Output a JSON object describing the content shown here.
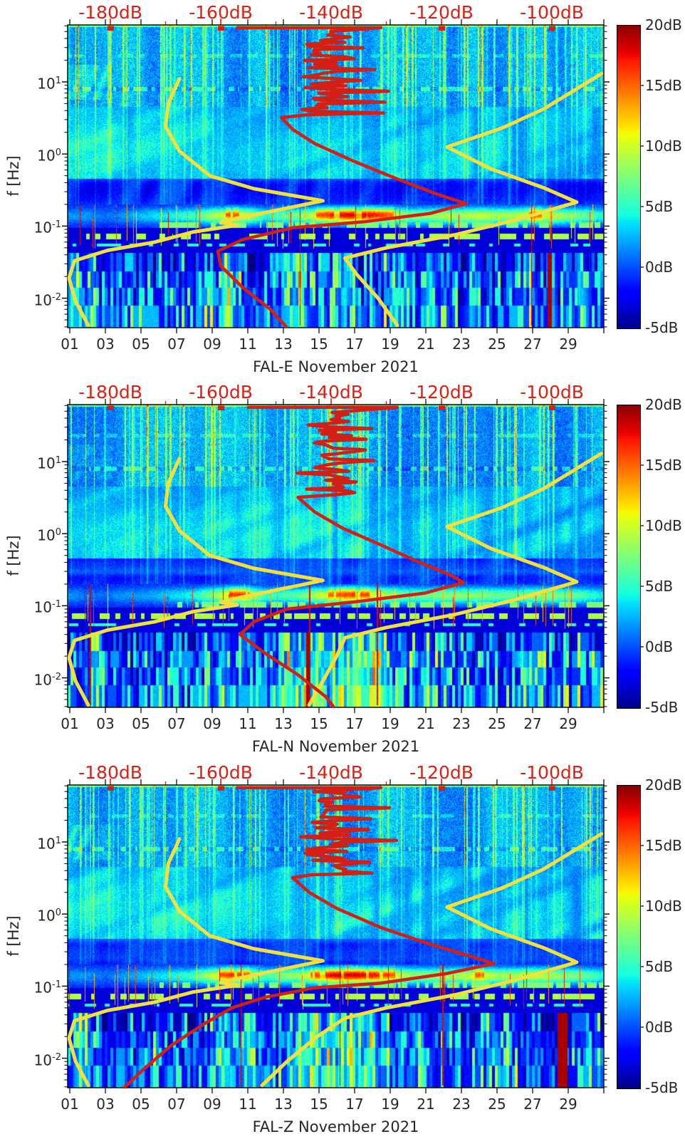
{
  "figure": {
    "background": "#ffffff"
  },
  "axes": {
    "ylabel": "f [Hz]",
    "y_tick_exponents": [
      "1",
      "0",
      "-1",
      "-2"
    ],
    "x_tick_labels": [
      "01",
      "03",
      "05",
      "07",
      "09",
      "11",
      "13",
      "15",
      "17",
      "19",
      "21",
      "23",
      "25",
      "27",
      "29"
    ],
    "x_tick_days": [
      1,
      3,
      5,
      7,
      9,
      11,
      13,
      15,
      17,
      19,
      21,
      23,
      25,
      27,
      29
    ],
    "colors": {
      "text": "#262626",
      "axis": "#111111",
      "top_axis_red": "#d92114",
      "noise_model_yellow": "#f2e13d",
      "median_red": "#d22016"
    }
  },
  "top_axis": {
    "labels": [
      "-180dB",
      "-160dB",
      "-140dB",
      "-120dB",
      "-100dB"
    ],
    "label_db": [
      -180,
      -160,
      -140,
      -120,
      -100
    ],
    "minor_tick_db": [
      -170,
      -150,
      -130,
      -110
    ]
  },
  "colorbar": {
    "tick_labels": [
      "20dB",
      "15dB",
      "10dB",
      "5dB",
      "0dB",
      "-5dB"
    ],
    "tick_values_db": [
      20,
      15,
      10,
      5,
      0,
      -5
    ],
    "min_db": -5,
    "max_db": 20,
    "colormap": "jet"
  },
  "noise_models": {
    "nlnm_points_db_hz": [
      [
        -167.5,
        11
      ],
      [
        -169.5,
        5
      ],
      [
        -170,
        2.4
      ],
      [
        -167.5,
        1.1
      ],
      [
        -162,
        0.5
      ],
      [
        -154,
        0.33
      ],
      [
        -141.5,
        0.225
      ],
      [
        -150,
        0.165
      ],
      [
        -157,
        0.128
      ],
      [
        -160,
        0.112
      ],
      [
        -157,
        0.103
      ],
      [
        -165,
        0.083
      ],
      [
        -172,
        0.06
      ],
      [
        -180.5,
        0.046
      ],
      [
        -186.5,
        0.033
      ],
      [
        -187.5,
        0.019
      ],
      [
        -186.3,
        0.009
      ],
      [
        -184,
        0.0042
      ]
    ],
    "nhnm_points_db_hz_upper": [
      [
        -91,
        13
      ],
      [
        -95.5,
        8
      ],
      [
        -101.5,
        4.2
      ],
      [
        -109,
        2.3
      ],
      [
        -119,
        1.25
      ],
      [
        -111,
        0.62
      ],
      [
        -101.5,
        0.34
      ],
      [
        -95.5,
        0.215
      ],
      [
        -106.5,
        0.122
      ],
      [
        -117.5,
        0.076
      ],
      [
        -130,
        0.05
      ],
      [
        -137.5,
        0.036
      ]
    ]
  },
  "chart_data": [
    {
      "type": "heatmap",
      "subtype": "seismic-power-spectrogram",
      "title": "FAL-E November 2021",
      "component": "E",
      "x_range_days": [
        0.88,
        31
      ],
      "y_axis": {
        "label": "f [Hz]",
        "scale": "log",
        "range_hz": [
          0.0039,
          60
        ]
      },
      "top_axis_range_db": [
        -187.7,
        -90.6
      ],
      "color_range_db": [
        -5,
        20
      ],
      "median_psd_db_hz": [
        [
          -149,
          3.2
        ],
        [
          -147,
          2.2
        ],
        [
          -143,
          1.4
        ],
        [
          -136,
          0.8
        ],
        [
          -128,
          0.45
        ],
        [
          -121,
          0.28
        ],
        [
          -115.5,
          0.205
        ],
        [
          -122,
          0.15
        ],
        [
          -134,
          0.115
        ],
        [
          -147,
          0.095
        ],
        [
          -156,
          0.065
        ],
        [
          -160.5,
          0.045
        ],
        [
          -160,
          0.028
        ],
        [
          -156,
          0.014
        ],
        [
          -151,
          0.007
        ],
        [
          -148,
          0.0039
        ]
      ],
      "nhnm_tail_db_hz": [
        [
          -135.5,
          0.022
        ],
        [
          -131.5,
          0.01
        ],
        [
          -128,
          0.0042
        ]
      ],
      "render": {
        "seed": 11,
        "microseism_intensity_by_day": [
          3,
          3,
          2,
          3,
          4,
          5,
          6,
          7,
          10,
          12,
          11,
          6,
          8,
          9,
          12,
          14,
          15,
          14,
          12,
          9,
          9,
          10,
          10,
          11,
          10,
          10,
          12,
          11,
          9,
          8,
          6
        ],
        "yellow_bottom_columns": [
          [
            2.2,
            0.3,
            6
          ],
          [
            9.9,
            0.5,
            7
          ],
          [
            13.6,
            0.8,
            6
          ],
          [
            16.4,
            0.4,
            6
          ],
          [
            19.3,
            0.3,
            5
          ],
          [
            21.2,
            0.4,
            5
          ],
          [
            23.6,
            0.3,
            5
          ],
          [
            29.8,
            0.3,
            4
          ]
        ],
        "dark_red_columns": [
          [
            27.95,
            0.12
          ]
        ],
        "tall_red_spike_days": [
          13.9,
          26.9
        ],
        "left_patch_boost": 2.5,
        "red_jitter": {
          "base_db": -141,
          "amp_db": 4,
          "spike_db": 12,
          "f_min": 3.5,
          "f_max": 50
        },
        "top_red_segment_db": [
          -157,
          -131
        ],
        "top_red_marker_db": [
          -180,
          -160,
          -120,
          -100
        ]
      }
    },
    {
      "type": "heatmap",
      "subtype": "seismic-power-spectrogram",
      "title": "FAL-N November 2021",
      "component": "N",
      "x_range_days": [
        0.88,
        31
      ],
      "y_axis": {
        "label": "f [Hz]",
        "scale": "log",
        "range_hz": [
          0.0039,
          60
        ]
      },
      "top_axis_range_db": [
        -187.7,
        -90.6
      ],
      "color_range_db": [
        -5,
        20
      ],
      "median_psd_db_hz": [
        [
          -146,
          3.2
        ],
        [
          -143,
          2.0
        ],
        [
          -138,
          1.2
        ],
        [
          -131,
          0.7
        ],
        [
          -124,
          0.4
        ],
        [
          -118.5,
          0.27
        ],
        [
          -116,
          0.21
        ],
        [
          -123,
          0.15
        ],
        [
          -135,
          0.115
        ],
        [
          -148,
          0.09
        ],
        [
          -154,
          0.06
        ],
        [
          -156.5,
          0.04
        ],
        [
          -152,
          0.022
        ],
        [
          -146,
          0.011
        ],
        [
          -141,
          0.0055
        ],
        [
          -139.5,
          0.0039
        ]
      ],
      "nhnm_tail_db_hz": [
        [
          -139,
          0.02
        ],
        [
          -141.5,
          0.009
        ],
        [
          -144,
          0.0042
        ]
      ],
      "render": {
        "seed": 47,
        "microseism_intensity_by_day": [
          3,
          2,
          2,
          3,
          3,
          4,
          5,
          6,
          9,
          13,
          12,
          7,
          7,
          8,
          11,
          12,
          13,
          12,
          10,
          8,
          8,
          9,
          9,
          9,
          8,
          8,
          9,
          9,
          8,
          7,
          5
        ],
        "yellow_bottom_columns": [
          [
            2.4,
            0.3,
            5
          ],
          [
            9.6,
            0.4,
            6
          ],
          [
            13.2,
            0.7,
            7
          ],
          [
            14.8,
            0.9,
            8
          ],
          [
            16.8,
            1.0,
            8
          ],
          [
            18.1,
            0.6,
            7
          ],
          [
            21.0,
            0.4,
            5
          ],
          [
            26.5,
            0.3,
            4
          ]
        ],
        "dark_red_columns": [
          [
            14.35,
            0.1
          ]
        ],
        "tall_red_spike_days": [
          2.1,
          14.45,
          18.25
        ],
        "left_patch_boost": 1.5,
        "red_jitter": {
          "base_db": -140,
          "amp_db": 4,
          "spike_db": 12,
          "f_min": 3.5,
          "f_max": 48
        },
        "top_red_segment_db": [
          -155,
          -128
        ],
        "top_red_marker_db": [
          -180,
          -160,
          -120,
          -100
        ]
      }
    },
    {
      "type": "heatmap",
      "subtype": "seismic-power-spectrogram",
      "title": "FAL-Z November 2021",
      "component": "Z",
      "x_range_days": [
        0.88,
        31
      ],
      "y_axis": {
        "label": "f [Hz]",
        "scale": "log",
        "range_hz": [
          0.0039,
          60
        ]
      },
      "top_axis_range_db": [
        -187.7,
        -90.6
      ],
      "color_range_db": [
        -5,
        20
      ],
      "median_psd_db_hz": [
        [
          -147,
          3.2
        ],
        [
          -144,
          2.0
        ],
        [
          -139,
          1.2
        ],
        [
          -131,
          0.65
        ],
        [
          -122,
          0.38
        ],
        [
          -114,
          0.25
        ],
        [
          -110.5,
          0.205
        ],
        [
          -119,
          0.15
        ],
        [
          -131,
          0.11
        ],
        [
          -143,
          0.095
        ],
        [
          -152,
          0.07
        ],
        [
          -158,
          0.05
        ],
        [
          -163,
          0.03
        ],
        [
          -169,
          0.015
        ],
        [
          -174,
          0.007
        ],
        [
          -177.5,
          0.0039
        ]
      ],
      "nhnm_tail_db_hz": [
        [
          -142.5,
          0.02
        ],
        [
          -148,
          0.009
        ],
        [
          -152.5,
          0.0042
        ]
      ],
      "render": {
        "seed": 83,
        "microseism_intensity_by_day": [
          3,
          3,
          2,
          3,
          4,
          5,
          6,
          7,
          11,
          13,
          12,
          7,
          9,
          10,
          13,
          15,
          15,
          14,
          12,
          10,
          9,
          10,
          10,
          12,
          10,
          10,
          11,
          10,
          9,
          8,
          6
        ],
        "yellow_bottom_columns": [
          [
            1.6,
            0.3,
            6
          ],
          [
            9.6,
            0.4,
            6
          ],
          [
            11.2,
            0.5,
            6
          ],
          [
            14.0,
            0.8,
            7
          ],
          [
            16.0,
            1.0,
            8
          ],
          [
            17.6,
            0.6,
            7
          ],
          [
            20.6,
            0.4,
            5
          ],
          [
            25.5,
            0.3,
            4
          ]
        ],
        "dark_red_columns": [
          [
            28.6,
            0.22
          ],
          [
            28.85,
            0.1
          ]
        ],
        "tall_red_spike_days": [
          10.6,
          16.15,
          21.9
        ],
        "left_patch_boost": 2.5,
        "red_jitter": {
          "base_db": -140.5,
          "amp_db": 4,
          "spike_db": 12,
          "f_min": 3.5,
          "f_max": 50
        },
        "top_red_segment_db": [
          -157,
          -131
        ],
        "top_red_marker_db": [
          -180,
          -160,
          -120,
          -100
        ]
      }
    }
  ]
}
